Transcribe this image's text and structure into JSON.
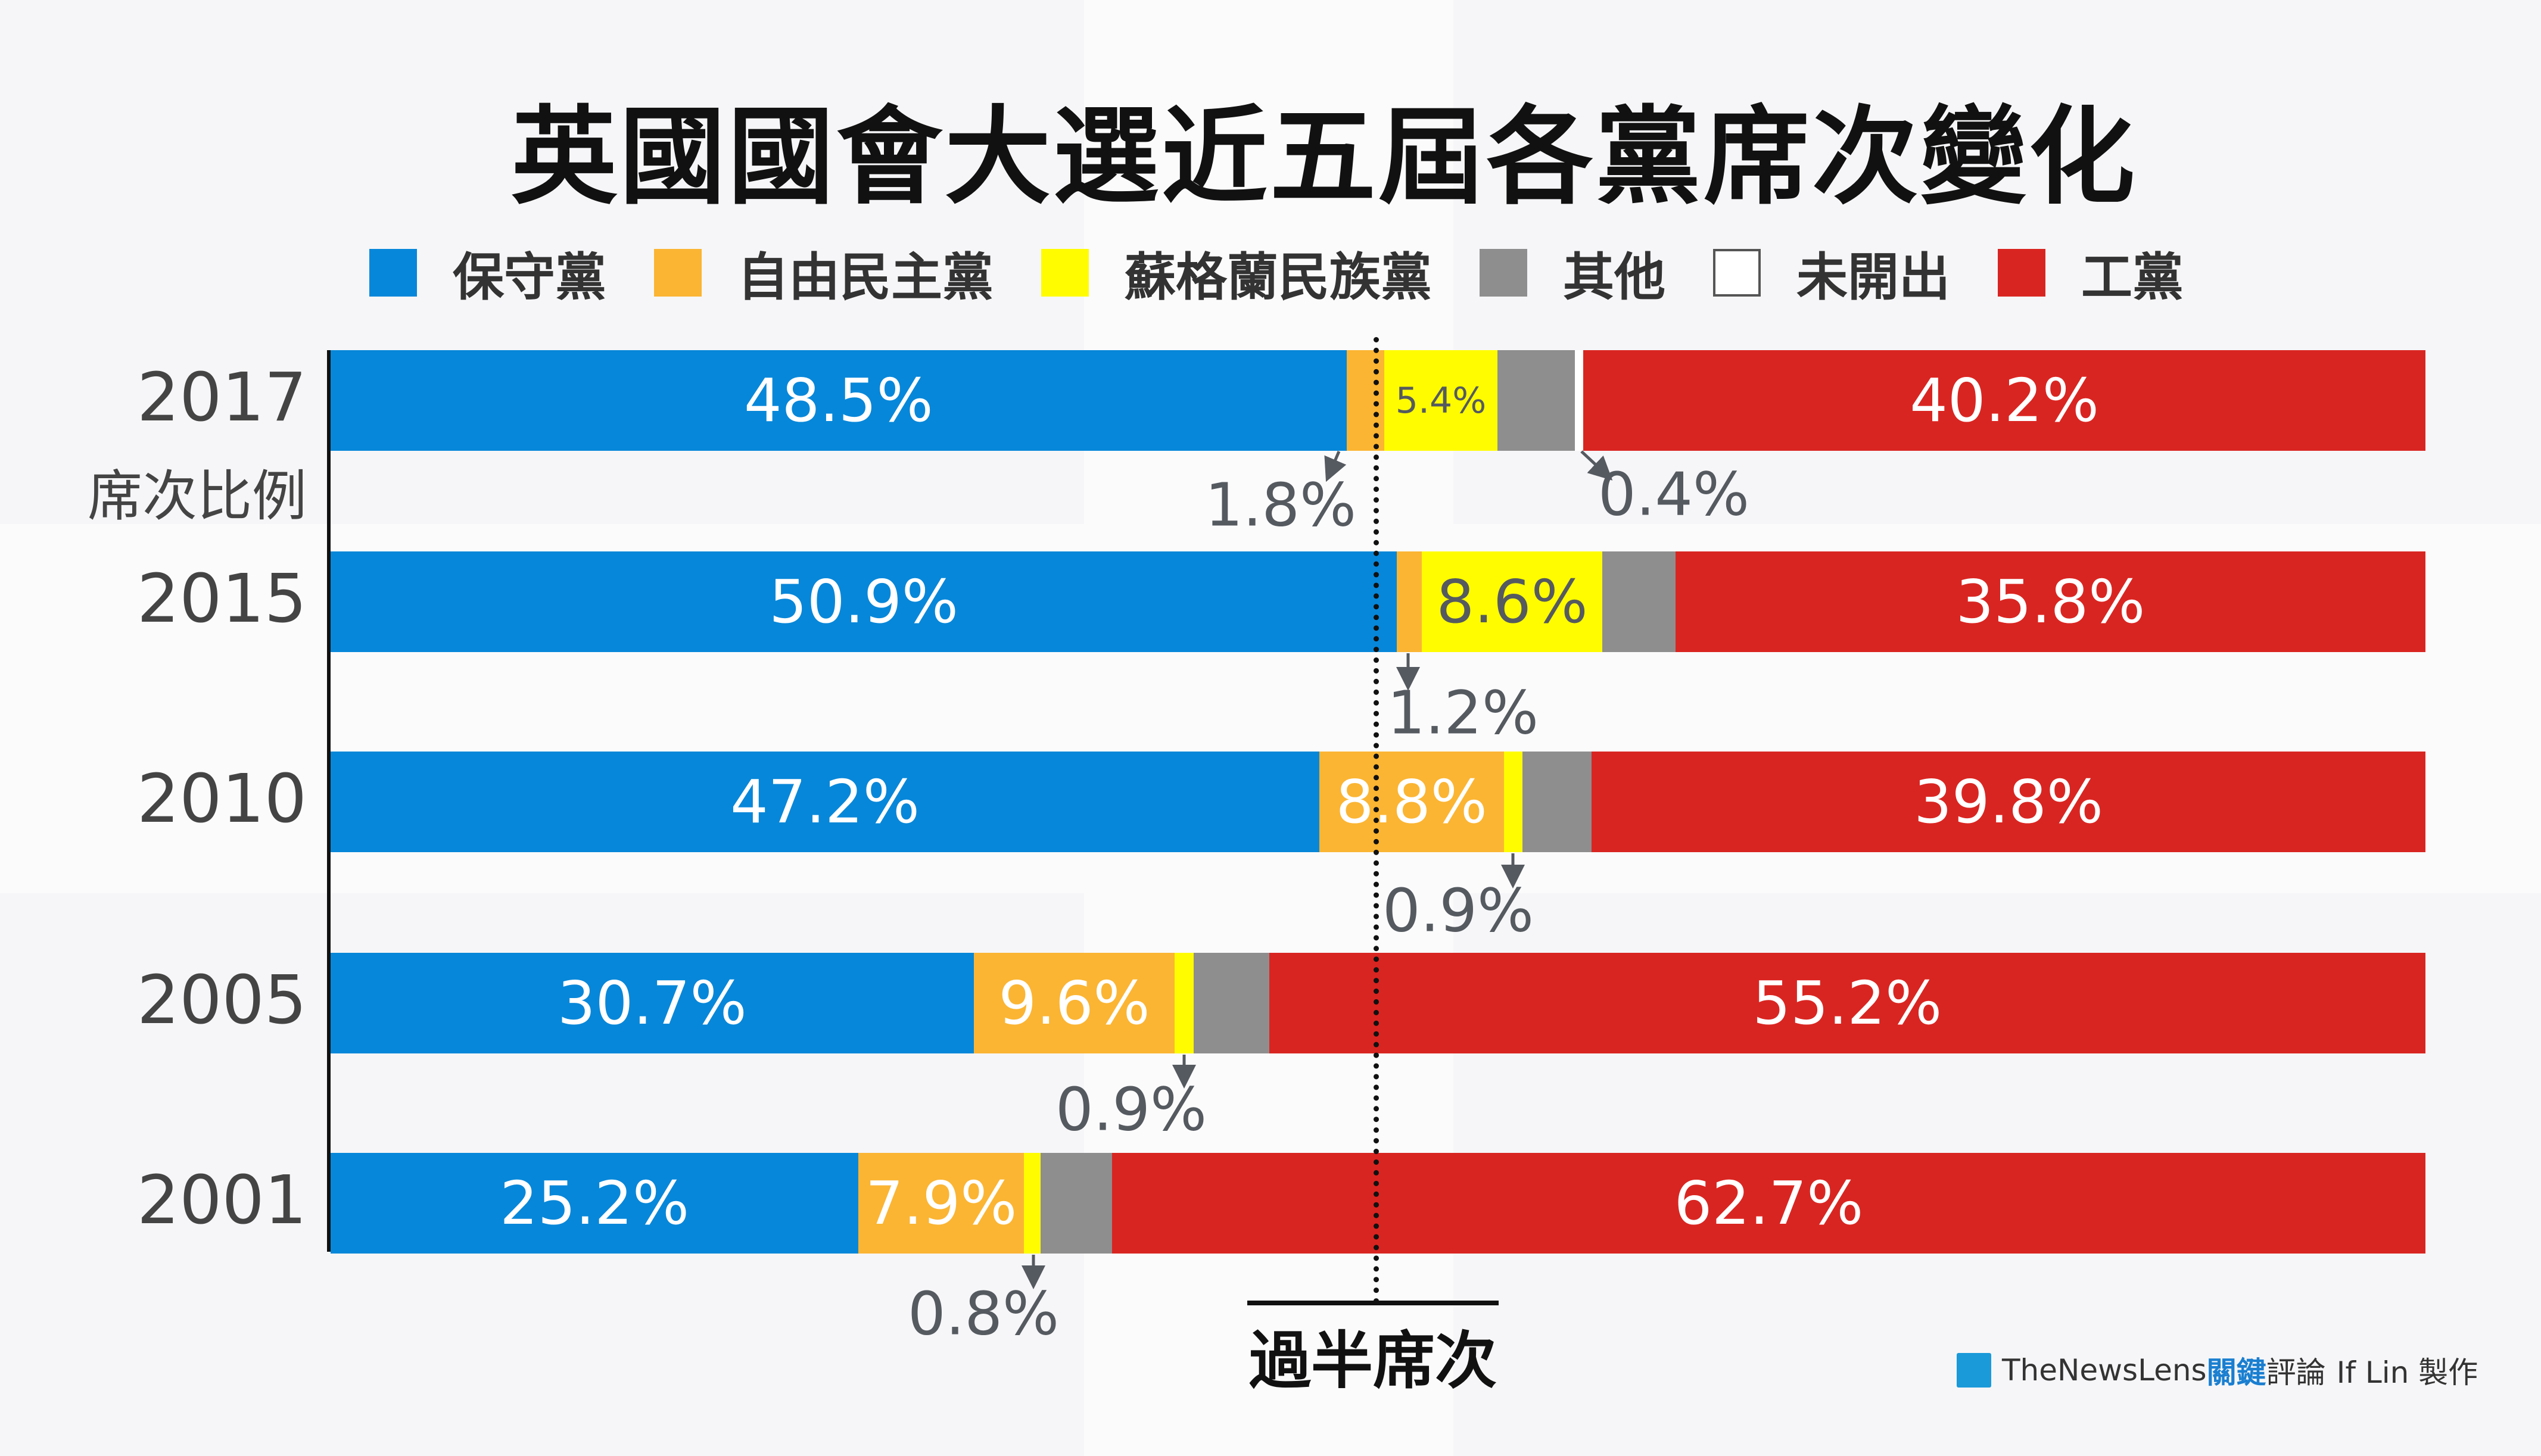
{
  "title": "英國國會大選近五屆各黨席次變化",
  "colors": {
    "保守黨": "#0787d9",
    "自由民主黨": "#fbb533",
    "蘇格蘭民族黨": "#fffc00",
    "其他": "#8e8e8e",
    "未開出": "#ffffff",
    "工黨": "#d92521"
  },
  "legend": [
    "保守黨",
    "自由民主黨",
    "蘇格蘭民族黨",
    "其他",
    "未開出",
    "工黨"
  ],
  "y_sublabel": "席次比例",
  "majority_label": "過半席次",
  "credit": {
    "brand": "TheNewsLens",
    "brand_cn_blue": "關鍵",
    "brand_cn": "評論",
    "author": "If Lin 製作"
  },
  "chart_data": {
    "type": "bar",
    "orientation": "horizontal-stacked-100",
    "title": "英國國會大選近五屆各黨席次變化",
    "categories": [
      "2017",
      "2015",
      "2010",
      "2005",
      "2001"
    ],
    "xlim": [
      0,
      100
    ],
    "majority_line": 50,
    "series": [
      {
        "name": "保守黨",
        "values": [
          48.5,
          50.9,
          47.2,
          30.7,
          25.2
        ],
        "labels": [
          "48.5%",
          "50.9%",
          "47.2%",
          "30.7%",
          "25.2%"
        ]
      },
      {
        "name": "自由民主黨",
        "values": [
          1.8,
          1.2,
          8.8,
          9.6,
          7.9
        ],
        "labels": [
          "1.8%",
          "1.2%",
          "8.8%",
          "9.6%",
          "7.9%"
        ]
      },
      {
        "name": "蘇格蘭民族黨",
        "values": [
          5.4,
          8.6,
          0.9,
          0.9,
          0.8
        ],
        "labels": [
          "5.4%",
          "8.6%",
          "0.9%",
          "0.9%",
          "0.8%"
        ]
      },
      {
        "name": "其他",
        "values": [
          3.7,
          3.5,
          3.3,
          3.6,
          3.4
        ],
        "labels": [
          "",
          "",
          "",
          "",
          ""
        ]
      },
      {
        "name": "未開出",
        "values": [
          0.4,
          0,
          0,
          0,
          0
        ],
        "labels": [
          "0.4%",
          "",
          "",
          "",
          ""
        ]
      },
      {
        "name": "工黨",
        "values": [
          40.2,
          35.8,
          39.8,
          55.2,
          62.7
        ],
        "labels": [
          "40.2%",
          "35.8%",
          "39.8%",
          "55.2%",
          "62.7%"
        ]
      }
    ]
  }
}
